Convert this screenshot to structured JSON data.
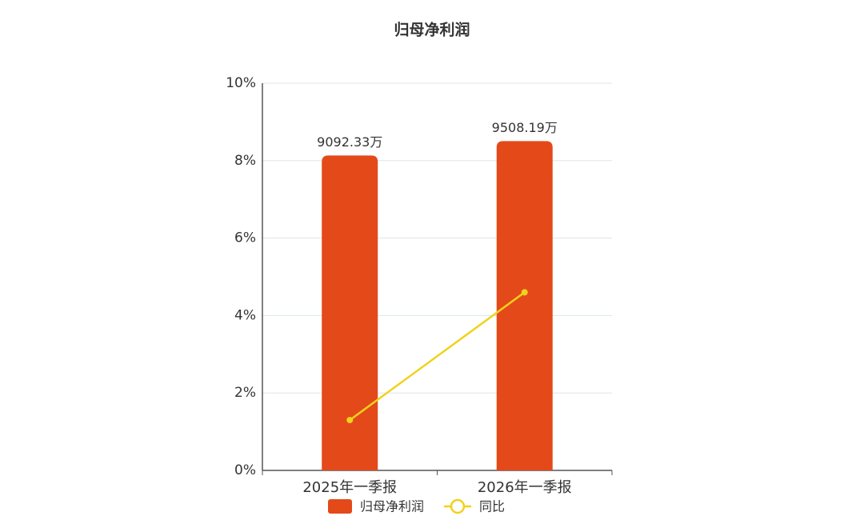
{
  "chart_data": {
    "type": "bar",
    "title": "归母净利润",
    "categories": [
      "2025年一季报",
      "2026年一季报"
    ],
    "series": [
      {
        "name": "归母净利润",
        "type": "bar",
        "axis": "y2",
        "color": "#e4491a",
        "values": [
          9092.33,
          9508.19
        ],
        "value_labels": [
          "9092.33万",
          "9508.19万"
        ]
      },
      {
        "name": "同比",
        "type": "line",
        "color": "#f0d21c",
        "values": [
          1.3,
          4.6
        ]
      }
    ],
    "ylim": [
      0,
      10
    ],
    "yticks": [
      {
        "value": 0,
        "label": "0%"
      },
      {
        "value": 2,
        "label": "2%"
      },
      {
        "value": 4,
        "label": "4%"
      },
      {
        "value": 6,
        "label": "6%"
      },
      {
        "value": 8,
        "label": "8%"
      },
      {
        "value": 10,
        "label": "10%"
      }
    ],
    "y2lim": [
      0,
      11180
    ],
    "grid": true
  }
}
